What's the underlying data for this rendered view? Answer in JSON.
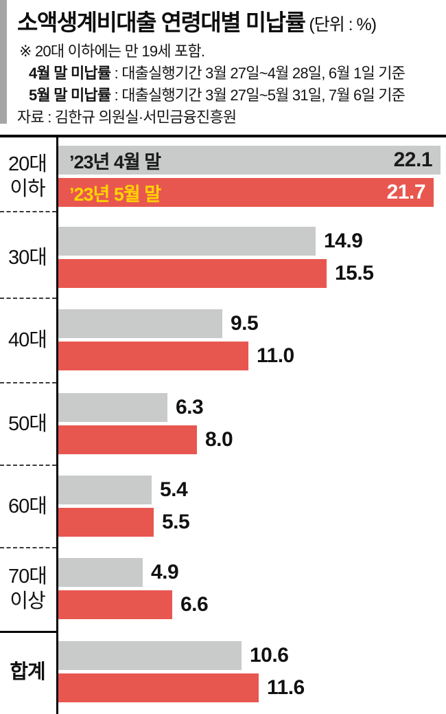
{
  "header": {
    "title": "소액생계비대출 연령대별 미납률",
    "unit": "(단위 : %)",
    "note1": "※ 20대 이하에는 만 19세 포함.",
    "note2_bold": "4월 말 미납률",
    "note2_text": " : 대출실행기간 3월 27일~4월 28일, 6월 1일 기준",
    "note3_bold": "5월 말 미납률",
    "note3_text": " : 대출실행기간 3월 27일~5월 31일, 7월 6일 기준",
    "source": "자료 : 김한규 의원실·서민금융진흥원"
  },
  "chart_data": {
    "type": "bar",
    "orientation": "horizontal",
    "title": "소액생계비대출 연령대별 미납률",
    "unit": "%",
    "categories": [
      "20대 이하",
      "30대",
      "40대",
      "50대",
      "60대",
      "70대 이상",
      "합계"
    ],
    "category_lines": [
      [
        "20대",
        "이하"
      ],
      [
        "30대"
      ],
      [
        "40대"
      ],
      [
        "50대"
      ],
      [
        "60대"
      ],
      [
        "70대",
        "이상"
      ],
      [
        "합계"
      ]
    ],
    "series": [
      {
        "name": "’23년 4월 말",
        "values": [
          22.1,
          14.9,
          9.5,
          6.3,
          5.4,
          4.9,
          10.6
        ]
      },
      {
        "name": "’23년 5월 말",
        "values": [
          21.7,
          15.5,
          11.0,
          8.0,
          5.5,
          6.6,
          11.6
        ]
      }
    ],
    "value_label_decimals": 1,
    "legend_position": "inside-first-group-bars",
    "value_labels_first_group": "inside-right",
    "value_labels_other_groups": "outside-right",
    "xlim": [
      0,
      22.5
    ],
    "grid": false
  },
  "colors": {
    "april_bar": "#c9caca",
    "may_bar": "#e8574f",
    "april_legend_text": "#1a1a1a",
    "may_legend_text": "#ffd400",
    "april_value_text": "#1a1a1a",
    "may_value_text": "#ffffff",
    "axis": "#000000",
    "left_strip": "#a5a5a5",
    "separator": "#3a3a3a",
    "text": "#111111"
  }
}
